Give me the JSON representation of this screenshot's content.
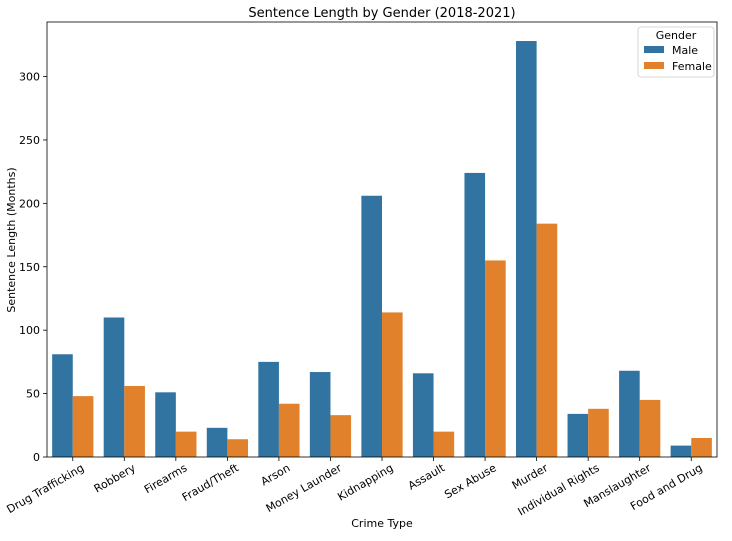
{
  "chart_data": {
    "type": "bar",
    "title": "Sentence Length by Gender (2018-2021)",
    "xlabel": "Crime Type",
    "ylabel": "Sentence Length (Months)",
    "ylim": [
      0,
      343
    ],
    "yticks": [
      0,
      50,
      100,
      150,
      200,
      250,
      300
    ],
    "categories": [
      "Drug Trafficking",
      "Robbery",
      "Firearms",
      "Fraud/Theft",
      "Arson",
      "Money Launder",
      "Kidnapping",
      "Assault",
      "Sex Abuse",
      "Murder",
      "Individual Rights",
      "Manslaughter",
      "Food and Drug"
    ],
    "series": [
      {
        "name": "Male",
        "color": "#3274a1",
        "values": [
          81,
          110,
          51,
          23,
          75,
          67,
          206,
          66,
          224,
          328,
          34,
          68,
          9
        ]
      },
      {
        "name": "Female",
        "color": "#e1812c",
        "values": [
          48,
          56,
          20,
          14,
          42,
          33,
          114,
          20,
          155,
          184,
          38,
          45,
          15
        ]
      }
    ],
    "legend": {
      "title": "Gender",
      "position": "top-right"
    },
    "grid": false
  }
}
